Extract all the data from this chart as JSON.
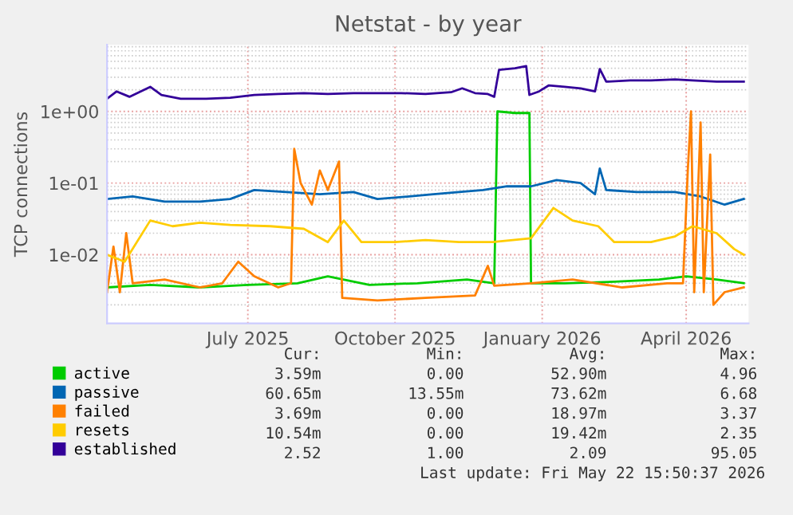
{
  "chart_data": {
    "type": "line",
    "title": "Netstat - by year",
    "ylabel": "TCP connections",
    "log": "y",
    "grid": true,
    "legend": "bottom left",
    "marker": "none",
    "line_style": "solid",
    "xlim": [
      "2025-04-04",
      "2026-05-10"
    ],
    "xticks": [
      {
        "value": "2025-07-01",
        "label": "July 2025"
      },
      {
        "value": "2025-10-01",
        "label": "October 2025"
      },
      {
        "value": "2026-01-01",
        "label": "January 2026"
      },
      {
        "value": "2026-04-01",
        "label": "April 2026"
      }
    ],
    "ylim": [
      0.0011,
      8.5
    ],
    "yticks": [
      {
        "value": 0.01,
        "label": "1e-02"
      },
      {
        "value": 0.1,
        "label": "1e-01"
      },
      {
        "value": 1,
        "label": "1e+00"
      }
    ],
    "series": [
      {
        "name": "active",
        "color": "#00cc00",
        "x": [
          "2025-04-04",
          "2025-05-01",
          "2025-06-01",
          "2025-07-01",
          "2025-08-01",
          "2025-08-20",
          "2025-09-15",
          "2025-10-15",
          "2025-11-15",
          "2025-12-02",
          "2025-12-04",
          "2025-12-15",
          "2025-12-24",
          "2025-12-25",
          "2026-01-15",
          "2026-02-15",
          "2026-03-15",
          "2026-04-01",
          "2026-04-20",
          "2026-05-07"
        ],
        "values": [
          0.0035,
          0.0038,
          0.0035,
          0.0038,
          0.004,
          0.005,
          0.0038,
          0.004,
          0.0045,
          0.004,
          1.0,
          0.95,
          0.95,
          0.004,
          0.004,
          0.0042,
          0.0045,
          0.005,
          0.0045,
          0.004
        ]
      },
      {
        "name": "passive",
        "color": "#0066b3",
        "x": [
          "2025-04-04",
          "2025-04-20",
          "2025-05-10",
          "2025-06-01",
          "2025-06-20",
          "2025-07-05",
          "2025-07-25",
          "2025-08-15",
          "2025-09-05",
          "2025-09-20",
          "2025-10-10",
          "2025-10-25",
          "2025-11-10",
          "2025-11-25",
          "2025-12-10",
          "2025-12-25",
          "2026-01-10",
          "2026-01-25",
          "2026-02-03",
          "2026-02-06",
          "2026-02-10",
          "2026-03-01",
          "2026-03-25",
          "2026-04-10",
          "2026-04-25",
          "2026-05-07"
        ],
        "values": [
          0.06,
          0.065,
          0.055,
          0.055,
          0.06,
          0.08,
          0.075,
          0.07,
          0.075,
          0.06,
          0.065,
          0.07,
          0.075,
          0.08,
          0.09,
          0.09,
          0.11,
          0.1,
          0.07,
          0.16,
          0.08,
          0.075,
          0.075,
          0.065,
          0.05,
          0.06
        ]
      },
      {
        "name": "failed",
        "color": "#ff8000",
        "x": [
          "2025-04-04",
          "2025-04-08",
          "2025-04-12",
          "2025-04-16",
          "2025-04-20",
          "2025-05-10",
          "2025-06-01",
          "2025-06-15",
          "2025-06-25",
          "2025-07-05",
          "2025-07-20",
          "2025-07-28",
          "2025-07-30",
          "2025-08-03",
          "2025-08-10",
          "2025-08-15",
          "2025-08-20",
          "2025-08-27",
          "2025-08-29",
          "2025-09-20",
          "2025-10-20",
          "2025-11-20",
          "2025-11-28",
          "2025-12-02",
          "2025-12-25",
          "2026-01-20",
          "2026-02-20",
          "2026-03-20",
          "2026-03-30",
          "2026-04-02",
          "2026-04-04",
          "2026-04-06",
          "2026-04-10",
          "2026-04-12",
          "2026-04-16",
          "2026-04-18",
          "2026-04-25",
          "2026-05-07"
        ],
        "values": [
          0.003,
          0.013,
          0.003,
          0.02,
          0.004,
          0.0045,
          0.0035,
          0.004,
          0.008,
          0.005,
          0.0035,
          0.004,
          0.3,
          0.1,
          0.05,
          0.15,
          0.08,
          0.2,
          0.0025,
          0.0023,
          0.0025,
          0.0027,
          0.007,
          0.0037,
          0.004,
          0.0045,
          0.0035,
          0.004,
          0.004,
          0.15,
          1.0,
          0.003,
          0.7,
          0.003,
          0.25,
          0.002,
          0.003,
          0.0035
        ]
      },
      {
        "name": "resets",
        "color": "#ffcc00",
        "x": [
          "2025-04-04",
          "2025-04-15",
          "2025-05-01",
          "2025-05-15",
          "2025-06-01",
          "2025-06-20",
          "2025-07-15",
          "2025-08-05",
          "2025-08-20",
          "2025-08-30",
          "2025-09-10",
          "2025-10-01",
          "2025-10-20",
          "2025-11-10",
          "2025-12-01",
          "2025-12-25",
          "2026-01-08",
          "2026-01-20",
          "2026-02-05",
          "2026-02-15",
          "2026-03-10",
          "2026-03-25",
          "2026-04-05",
          "2026-04-20",
          "2026-05-01",
          "2026-05-07"
        ],
        "values": [
          0.01,
          0.008,
          0.03,
          0.025,
          0.028,
          0.026,
          0.025,
          0.023,
          0.015,
          0.03,
          0.015,
          0.015,
          0.016,
          0.015,
          0.015,
          0.017,
          0.045,
          0.03,
          0.025,
          0.015,
          0.015,
          0.018,
          0.025,
          0.02,
          0.012,
          0.01
        ]
      },
      {
        "name": "established",
        "color": "#330099",
        "x": [
          "2025-04-04",
          "2025-04-10",
          "2025-04-18",
          "2025-04-25",
          "2025-05-01",
          "2025-05-08",
          "2025-05-20",
          "2025-06-05",
          "2025-06-20",
          "2025-07-05",
          "2025-07-20",
          "2025-08-05",
          "2025-08-20",
          "2025-09-05",
          "2025-09-20",
          "2025-10-05",
          "2025-10-20",
          "2025-11-05",
          "2025-11-12",
          "2025-11-20",
          "2025-11-28",
          "2025-12-02",
          "2025-12-05",
          "2025-12-15",
          "2025-12-22",
          "2025-12-24",
          "2025-12-30",
          "2026-01-05",
          "2026-01-15",
          "2026-01-25",
          "2026-02-03",
          "2026-02-06",
          "2026-02-10",
          "2026-02-25",
          "2026-03-10",
          "2026-03-25",
          "2026-04-05",
          "2026-04-20",
          "2026-05-01",
          "2026-05-07"
        ],
        "values": [
          1.5,
          1.9,
          1.6,
          1.9,
          2.2,
          1.7,
          1.5,
          1.5,
          1.55,
          1.7,
          1.75,
          1.8,
          1.75,
          1.8,
          1.8,
          1.8,
          1.75,
          1.85,
          2.1,
          1.8,
          1.75,
          1.6,
          3.8,
          4.0,
          4.3,
          1.7,
          1.9,
          2.3,
          2.2,
          2.1,
          1.9,
          3.9,
          2.6,
          2.7,
          2.7,
          2.8,
          2.7,
          2.6,
          2.6,
          2.6
        ]
      }
    ],
    "annotations": [
      "Cur:",
      "Min:",
      "Avg:",
      "Max:",
      "3.59m",
      "0.00",
      "52.90m",
      "4.96",
      "60.65m",
      "13.55m",
      "73.62m",
      "6.68",
      "3.69m",
      "0.00",
      "18.97m",
      "3.37",
      "10.54m",
      "0.00",
      "19.42m",
      "2.35",
      "2.52",
      "1.00",
      "2.09",
      "95.05",
      "Last update: Fri May 22 15:50:37 2026"
    ]
  }
}
